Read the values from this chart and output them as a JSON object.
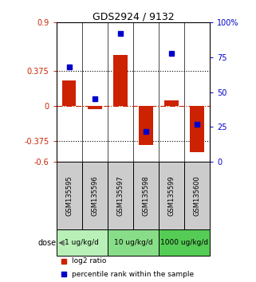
{
  "title": "GDS2924 / 9132",
  "samples": [
    "GSM135595",
    "GSM135596",
    "GSM135597",
    "GSM135598",
    "GSM135599",
    "GSM135600"
  ],
  "log2_ratio": [
    0.28,
    -0.03,
    0.55,
    -0.42,
    0.06,
    -0.5
  ],
  "percentile_rank": [
    68,
    45,
    92,
    22,
    78,
    27
  ],
  "left_ylim": [
    -0.6,
    0.9
  ],
  "left_yticks": [
    0.9,
    0.375,
    0,
    -0.375,
    -0.6
  ],
  "left_yticklabels": [
    "0.9",
    "0.375",
    "0",
    "-0.375",
    "-0.6"
  ],
  "right_ylim": [
    0,
    100
  ],
  "right_yticks": [
    100,
    75,
    50,
    25,
    0
  ],
  "right_yticklabels": [
    "100%",
    "75",
    "50",
    "25",
    "0"
  ],
  "hlines": [
    0.375,
    -0.375
  ],
  "dose_groups": [
    {
      "label": "1 ug/kg/d",
      "samples": [
        0,
        1
      ],
      "color": "#b8f0b8"
    },
    {
      "label": "10 ug/kg/d",
      "samples": [
        2,
        3
      ],
      "color": "#88dd88"
    },
    {
      "label": "1000 ug/kg/d",
      "samples": [
        4,
        5
      ],
      "color": "#55cc55"
    }
  ],
  "bar_color": "#cc2200",
  "dot_color": "#0000cc",
  "bar_width": 0.55,
  "legend_red_label": "log2 ratio",
  "legend_blue_label": "percentile rank within the sample",
  "dose_label": "dose",
  "background_color": "#ffffff"
}
